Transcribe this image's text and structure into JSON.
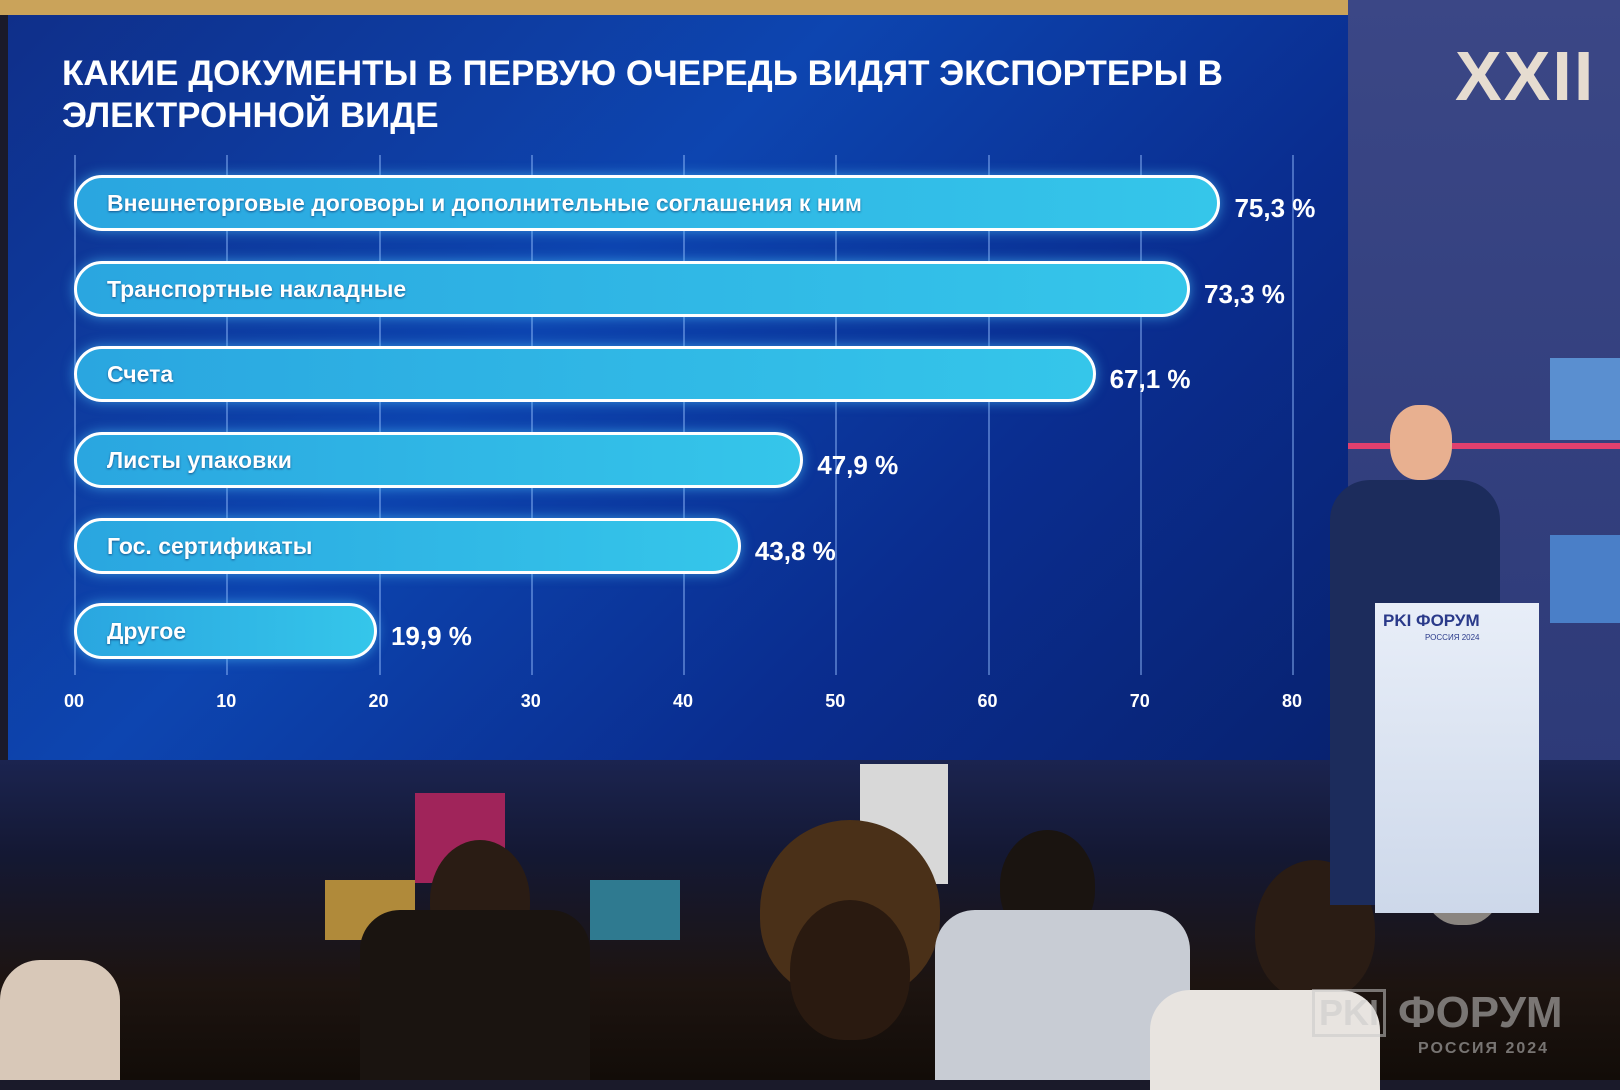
{
  "chart_data": {
    "type": "bar",
    "orientation": "horizontal",
    "title": "КАКИЕ ДОКУМЕНТЫ В ПЕРВУЮ ОЧЕРЕДЬ ВИДЯТ ЭКСПОРТЕРЫ В ЭЛЕКТРОННОЙ ВИДЕ",
    "categories": [
      "Внешнеторговые договоры и дополнительные соглашения к ним",
      "Транспортные накладные",
      "Счета",
      "Листы упаковки",
      "Гос. сертификаты",
      "Другое"
    ],
    "values": [
      75.3,
      73.3,
      67.1,
      47.9,
      43.8,
      19.9
    ],
    "value_labels": [
      "75,3 %",
      "73,3 %",
      "67,1 %",
      "47,9 %",
      "43,8 %",
      "19,9 %"
    ],
    "xticks": [
      "00",
      "10",
      "20",
      "30",
      "40",
      "50",
      "60",
      "70",
      "80"
    ],
    "xlim": [
      0,
      80
    ],
    "grid": true,
    "bar_color": "#2fb6e6"
  },
  "backdrop": {
    "edition": "XXII",
    "pink": "#e0406e"
  },
  "podium": {
    "logo": "PKI ФОРУМ",
    "sub": "РОССИЯ 2024"
  },
  "watermark": {
    "logo": "PKI",
    "name": "ФОРУМ",
    "sub": "РОССИЯ 2024"
  }
}
